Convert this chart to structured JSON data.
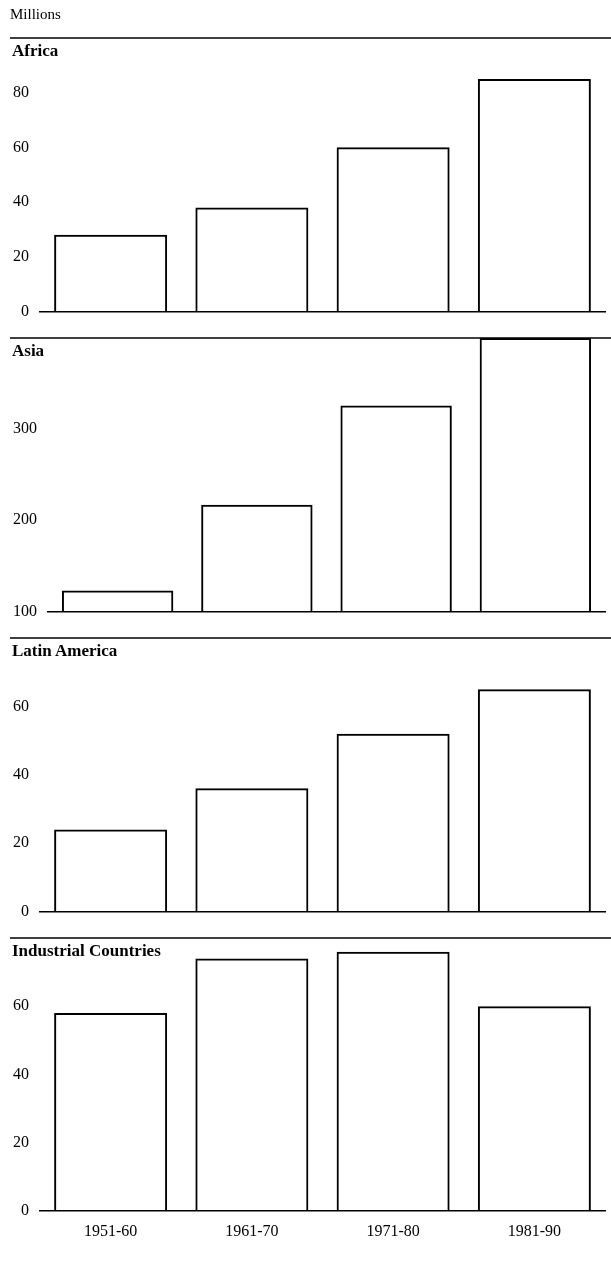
{
  "chart_data": [
    {
      "type": "bar",
      "ylabel": "Millions",
      "title": "Africa",
      "categories": [
        "1951-60",
        "1961-70",
        "1971-80",
        "1981-90"
      ],
      "values": [
        28,
        38,
        60,
        85
      ],
      "color": "#000000",
      "ylim": [
        0,
        100
      ],
      "yticks": [
        0,
        20,
        40,
        60,
        80
      ],
      "tick_labels": "y"
    },
    {
      "type": "bar",
      "title": "Asia",
      "categories": [
        "1951-60",
        "1961-70",
        "1971-80",
        "1981-90"
      ],
      "values": [
        123,
        217,
        326,
        400
      ],
      "color": "#000000",
      "ylim": [
        100,
        400
      ],
      "yticks": [
        100,
        200,
        300
      ],
      "tick_labels": "y"
    },
    {
      "type": "bar",
      "title": "Latin America",
      "categories": [
        "1951-60",
        "1961-70",
        "1971-80",
        "1981-90"
      ],
      "values": [
        24,
        36,
        52,
        65
      ],
      "color": "#000000",
      "ylim": [
        0,
        80
      ],
      "yticks": [
        0,
        20,
        40,
        60
      ],
      "tick_labels": "y"
    },
    {
      "type": "bar",
      "title": "Industrial Countries",
      "categories": [
        "1951-60",
        "1961-70",
        "1971-80",
        "1981-90"
      ],
      "values": [
        58,
        74,
        76,
        60
      ],
      "color": "#000000",
      "ylim": [
        0,
        80
      ],
      "yticks": [
        0,
        20,
        40,
        60
      ]
    }
  ]
}
